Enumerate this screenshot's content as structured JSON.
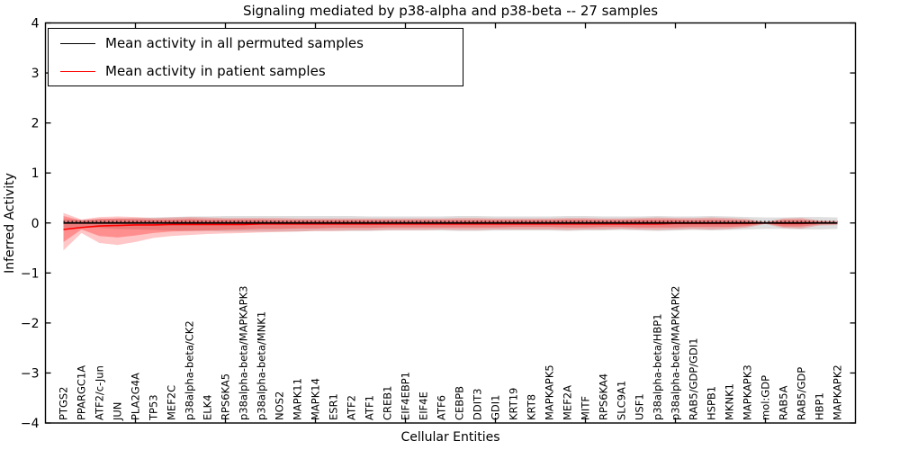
{
  "figure": {
    "title": "Signaling mediated by p38-alpha and p38-beta -- 27 samples",
    "xlabel": "Cellular Entities",
    "ylabel": "Inferred Activity"
  },
  "legend": {
    "items": [
      {
        "label": "Mean activity in all permuted samples",
        "color": "#000000"
      },
      {
        "label": "Mean activity in patient samples",
        "color": "#ff0000"
      }
    ]
  },
  "chart_data": {
    "type": "line",
    "title": "Signaling mediated by p38-alpha and p38-beta -- 27 samples",
    "xlabel": "Cellular Entities",
    "ylabel": "Inferred Activity",
    "ylim": [
      -4,
      4
    ],
    "yticks": [
      -4,
      -3,
      -2,
      -1,
      0,
      1,
      2,
      3,
      4
    ],
    "x_axis_numeric_range": [
      0,
      45
    ],
    "x_major_tick_step": 5,
    "grid": false,
    "legend_position": "upper left",
    "categories": [
      "PTGS2",
      "PPARGC1A",
      "ATF2/c-Jun",
      "JUN",
      "PLA2G4A",
      "TP53",
      "MEF2C",
      "p38alpha-beta/CK2",
      "ELK4",
      "RPS6KA5",
      "p38alpha-beta/MAPKAPK3",
      "p38alpha-beta/MNK1",
      "NOS2",
      "MAPK11",
      "MAPK14",
      "ESR1",
      "ATF2",
      "ATF1",
      "CREB1",
      "EIF4EBP1",
      "EIF4E",
      "ATF6",
      "CEBPB",
      "DDIT3",
      "GDI1",
      "KRT19",
      "KRT8",
      "MAPKAPK5",
      "MEF2A",
      "MITF",
      "RPS6KA4",
      "SLC9A1",
      "USF1",
      "p38alpha-beta/HBP1",
      "p38alpha-beta/MAPKAPK2",
      "RAB5/GDP/GDI1",
      "HSPB1",
      "MKNK1",
      "MAPKAPK3",
      "mol:GDP",
      "RAB5A",
      "RAB5/GDP",
      "HBP1",
      "MAPKAPK2"
    ],
    "series": [
      {
        "name": "Mean activity in all permuted samples",
        "color": "#000000",
        "linestyle": "solid",
        "linewidth": 1.7,
        "constant_value": 0.0
      },
      {
        "name": "permuted reference (dotted)",
        "color": "#000000",
        "linestyle": "dotted",
        "linewidth": 1.2,
        "constant_value": 0.03
      },
      {
        "name": "Mean activity in patient samples",
        "color": "#ff0000",
        "linestyle": "solid",
        "linewidth": 1.6,
        "values": [
          -0.13,
          -0.09,
          -0.06,
          -0.05,
          -0.04,
          -0.04,
          -0.03,
          -0.03,
          -0.03,
          -0.03,
          -0.03,
          -0.02,
          -0.02,
          -0.02,
          -0.02,
          -0.02,
          -0.02,
          -0.02,
          -0.02,
          -0.02,
          -0.02,
          -0.02,
          -0.02,
          -0.02,
          -0.02,
          -0.02,
          -0.02,
          -0.02,
          -0.02,
          -0.02,
          -0.02,
          -0.02,
          -0.02,
          -0.02,
          -0.01,
          -0.01,
          -0.01,
          -0.01,
          -0.01,
          0.0,
          -0.01,
          -0.01,
          0.0,
          0.0
        ]
      }
    ],
    "bands": [
      {
        "name": "permuted samples spread",
        "color": "#888888",
        "opacity": 0.28,
        "upper": [
          0.08,
          0.06,
          0.08,
          0.09,
          0.1,
          0.11,
          0.12,
          0.13,
          0.13,
          0.14,
          0.14,
          0.14,
          0.14,
          0.14,
          0.14,
          0.14,
          0.14,
          0.13,
          0.13,
          0.13,
          0.13,
          0.13,
          0.14,
          0.14,
          0.13,
          0.13,
          0.13,
          0.13,
          0.14,
          0.14,
          0.13,
          0.13,
          0.13,
          0.14,
          0.13,
          0.13,
          0.14,
          0.13,
          0.12,
          0.11,
          0.11,
          0.12,
          0.12,
          0.11
        ],
        "lower": [
          -0.1,
          -0.08,
          -0.1,
          -0.12,
          -0.13,
          -0.14,
          -0.15,
          -0.16,
          -0.16,
          -0.17,
          -0.17,
          -0.17,
          -0.17,
          -0.17,
          -0.16,
          -0.16,
          -0.16,
          -0.16,
          -0.15,
          -0.15,
          -0.15,
          -0.15,
          -0.16,
          -0.16,
          -0.15,
          -0.15,
          -0.15,
          -0.15,
          -0.16,
          -0.15,
          -0.15,
          -0.14,
          -0.15,
          -0.16,
          -0.15,
          -0.14,
          -0.15,
          -0.14,
          -0.13,
          -0.12,
          -0.12,
          -0.13,
          -0.13,
          -0.12
        ]
      },
      {
        "name": "patient samples spread (outer)",
        "color": "#ff0000",
        "opacity": 0.22,
        "upper": [
          0.2,
          0.07,
          0.12,
          0.13,
          0.12,
          0.1,
          0.11,
          0.12,
          0.11,
          0.1,
          0.1,
          0.1,
          0.1,
          0.09,
          0.09,
          0.09,
          0.09,
          0.09,
          0.09,
          0.09,
          0.09,
          0.09,
          0.1,
          0.1,
          0.09,
          0.09,
          0.09,
          0.09,
          0.1,
          0.1,
          0.09,
          0.09,
          0.1,
          0.11,
          0.1,
          0.1,
          0.11,
          0.1,
          0.08,
          0.02,
          0.09,
          0.1,
          0.05,
          0.04
        ],
        "lower": [
          -0.55,
          -0.2,
          -0.4,
          -0.44,
          -0.38,
          -0.3,
          -0.26,
          -0.24,
          -0.22,
          -0.21,
          -0.2,
          -0.19,
          -0.18,
          -0.17,
          -0.16,
          -0.16,
          -0.15,
          -0.15,
          -0.14,
          -0.14,
          -0.14,
          -0.13,
          -0.14,
          -0.14,
          -0.13,
          -0.13,
          -0.13,
          -0.13,
          -0.14,
          -0.13,
          -0.13,
          -0.12,
          -0.13,
          -0.14,
          -0.13,
          -0.12,
          -0.13,
          -0.12,
          -0.09,
          -0.02,
          -0.1,
          -0.11,
          -0.05,
          -0.04
        ]
      },
      {
        "name": "patient samples spread (inner)",
        "color": "#ff0000",
        "opacity": 0.28,
        "upper": [
          0.14,
          0.05,
          0.08,
          0.09,
          0.08,
          0.07,
          0.07,
          0.08,
          0.07,
          0.07,
          0.07,
          0.07,
          0.06,
          0.06,
          0.06,
          0.06,
          0.06,
          0.06,
          0.06,
          0.06,
          0.06,
          0.06,
          0.06,
          0.06,
          0.06,
          0.06,
          0.06,
          0.06,
          0.07,
          0.07,
          0.06,
          0.06,
          0.07,
          0.07,
          0.07,
          0.06,
          0.07,
          0.06,
          0.05,
          0.01,
          0.06,
          0.06,
          0.03,
          0.02
        ],
        "lower": [
          -0.38,
          -0.13,
          -0.26,
          -0.29,
          -0.25,
          -0.2,
          -0.17,
          -0.16,
          -0.15,
          -0.14,
          -0.13,
          -0.12,
          -0.12,
          -0.11,
          -0.11,
          -0.1,
          -0.1,
          -0.1,
          -0.09,
          -0.09,
          -0.09,
          -0.09,
          -0.09,
          -0.09,
          -0.09,
          -0.08,
          -0.08,
          -0.08,
          -0.09,
          -0.09,
          -0.08,
          -0.08,
          -0.09,
          -0.09,
          -0.09,
          -0.08,
          -0.08,
          -0.08,
          -0.06,
          -0.01,
          -0.07,
          -0.07,
          -0.03,
          -0.02
        ]
      }
    ]
  }
}
